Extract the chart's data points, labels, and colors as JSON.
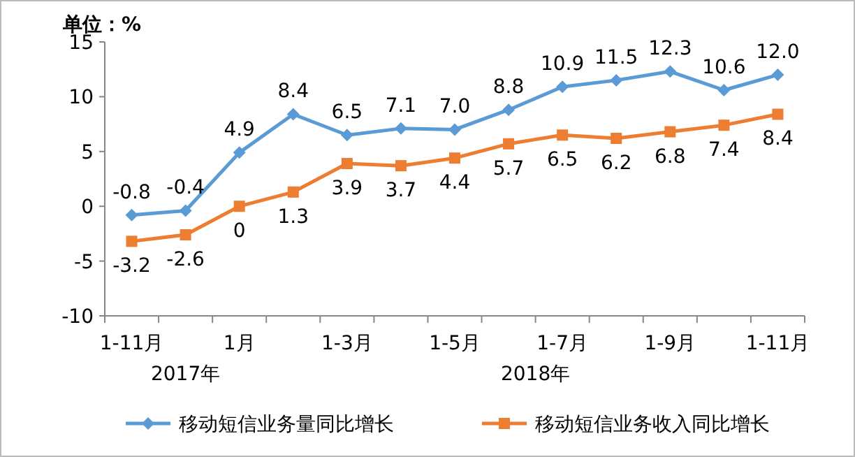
{
  "chart_data": {
    "type": "line",
    "ylabel": "单位：%",
    "categories": [
      "1-11月",
      null,
      "1月",
      null,
      "1-3月",
      null,
      "1-5月",
      null,
      "1-7月",
      null,
      "1-9月",
      null,
      "1-11月"
    ],
    "series": [
      {
        "name": "移动短信业务量同比增长",
        "color": "#5b9bd5",
        "marker": "diamond",
        "values": [
          -0.8,
          -0.4,
          4.9,
          8.4,
          6.5,
          7.1,
          7.0,
          8.8,
          10.9,
          11.5,
          12.3,
          10.6,
          12.0
        ],
        "value_labels": [
          "-0.8",
          "-0.4",
          "4.9",
          "8.4",
          "6.5",
          "7.1",
          "7.0",
          "8.8",
          "10.9",
          "11.5",
          "12.3",
          "10.6",
          "12.0"
        ]
      },
      {
        "name": "移动短信业务收入同比增长",
        "color": "#ed7d31",
        "marker": "square",
        "values": [
          -3.2,
          -2.6,
          0,
          1.3,
          3.9,
          3.7,
          4.4,
          5.7,
          6.5,
          6.2,
          6.8,
          7.4,
          8.4
        ],
        "value_labels": [
          "-3.2",
          "-2.6",
          "0",
          "1.3",
          "3.9",
          "3.7",
          "4.4",
          "5.7",
          "6.5",
          "6.2",
          "6.8",
          "7.4",
          "8.4"
        ]
      }
    ],
    "ylim": [
      -10,
      15
    ],
    "yticks": [
      -10,
      -5,
      0,
      5,
      10,
      15
    ],
    "grid": false,
    "legend": "bottom",
    "annotations": [
      "2017年",
      "2018年"
    ]
  }
}
